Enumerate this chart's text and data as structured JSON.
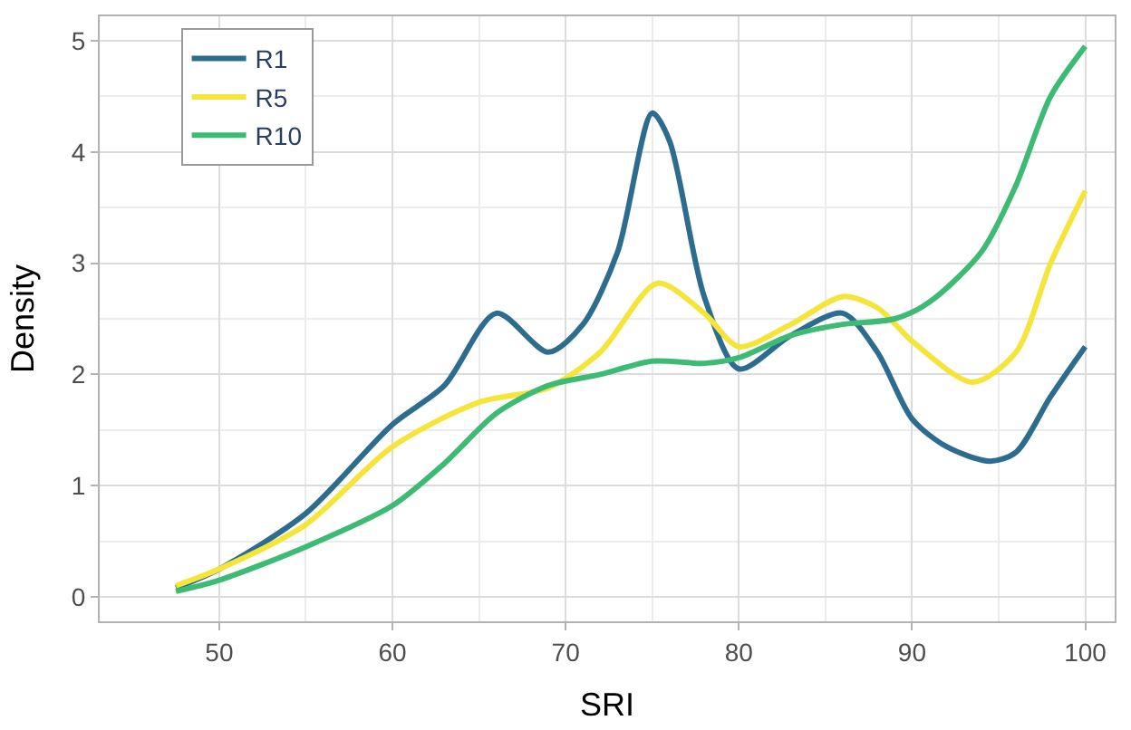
{
  "chart_data": {
    "type": "line",
    "xlabel": "SRI",
    "ylabel": "Density",
    "xlim": [
      43.1,
      101.7
    ],
    "ylim": [
      -0.22,
      5.22
    ],
    "xticks": [
      50,
      60,
      70,
      80,
      90,
      100
    ],
    "yticks": [
      0,
      1,
      2,
      3,
      4,
      5
    ],
    "grid": true,
    "legend": "top left",
    "marker": "none",
    "line_style": "solid",
    "series": [
      {
        "name": "R1",
        "color": "#2c6d8f",
        "x": [
          47.5,
          50,
          55,
          60,
          63,
          66,
          69,
          71,
          73,
          75,
          76,
          78,
          80,
          83,
          86,
          88,
          90,
          92,
          94.5,
          96,
          98,
          100
        ],
        "values": [
          0.08,
          0.25,
          0.75,
          1.55,
          1.9,
          2.55,
          2.2,
          2.45,
          3.1,
          4.35,
          4.1,
          2.7,
          2.05,
          2.35,
          2.55,
          2.2,
          1.6,
          1.35,
          1.22,
          1.3,
          1.8,
          2.25
        ]
      },
      {
        "name": "R5",
        "color": "#f5e43a",
        "x": [
          47.5,
          50,
          55,
          60,
          65,
          69,
          72,
          75.3,
          78,
          80,
          83,
          86,
          88,
          90,
          93.5,
          96,
          98,
          100
        ],
        "values": [
          0.1,
          0.25,
          0.65,
          1.35,
          1.75,
          1.88,
          2.2,
          2.82,
          2.55,
          2.25,
          2.45,
          2.7,
          2.6,
          2.3,
          1.93,
          2.2,
          3.0,
          3.65
        ]
      },
      {
        "name": "R10",
        "color": "#3dba74",
        "x": [
          47.5,
          50,
          55,
          60,
          63,
          66,
          69,
          72,
          75,
          78,
          80,
          83,
          86,
          89,
          91,
          94,
          96,
          98,
          100
        ],
        "values": [
          0.05,
          0.15,
          0.45,
          0.82,
          1.2,
          1.65,
          1.9,
          2.0,
          2.12,
          2.1,
          2.15,
          2.35,
          2.45,
          2.5,
          2.65,
          3.1,
          3.7,
          4.5,
          4.95
        ]
      }
    ]
  }
}
